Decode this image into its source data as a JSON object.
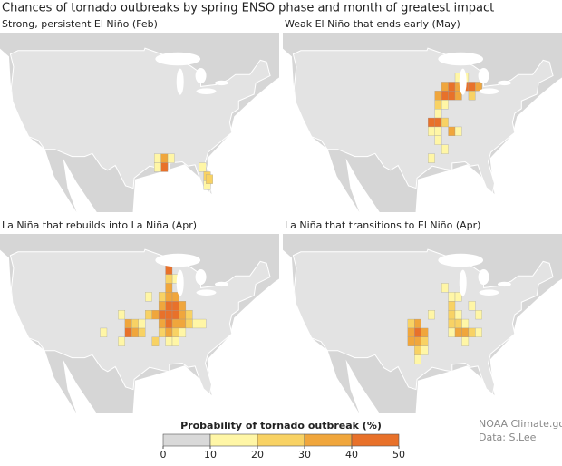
{
  "header": {
    "title": "Chances of tornado outbreaks by spring ENSO phase and month of greatest impact"
  },
  "panels": [
    {
      "title": "Strong, persistent El Niño (Feb)",
      "cells": [
        [
          -92,
          31,
          15
        ],
        [
          -90.5,
          31,
          35
        ],
        [
          -89,
          31,
          12
        ],
        [
          -90.5,
          29.5,
          45
        ],
        [
          -92,
          29.5,
          15
        ],
        [
          -82,
          29.5,
          12
        ],
        [
          -81,
          28,
          25
        ],
        [
          -81,
          26.5,
          15
        ],
        [
          -80.5,
          27.5,
          20
        ]
      ]
    },
    {
      "title": "Weak El Niño that ends early (May)",
      "cells": [
        [
          -91,
          43,
          35
        ],
        [
          -89.5,
          43,
          45
        ],
        [
          -88,
          43,
          30
        ],
        [
          -86.5,
          43,
          40
        ],
        [
          -85,
          43,
          45
        ],
        [
          -83.5,
          43,
          30
        ],
        [
          -92.5,
          41.5,
          30
        ],
        [
          -91,
          41.5,
          45
        ],
        [
          -89.5,
          41.5,
          45
        ],
        [
          -88,
          41.5,
          30
        ],
        [
          -85,
          41.5,
          20
        ],
        [
          -92.5,
          40,
          25
        ],
        [
          -91,
          40,
          15
        ],
        [
          -92.5,
          38.5,
          15
        ],
        [
          -94,
          37,
          40
        ],
        [
          -92.5,
          37,
          45
        ],
        [
          -91,
          37,
          25
        ],
        [
          -89.5,
          35.5,
          35
        ],
        [
          -88,
          35.5,
          15
        ],
        [
          -94,
          35.5,
          15
        ],
        [
          -92.5,
          35.5,
          15
        ],
        [
          -92.5,
          34,
          15
        ],
        [
          -91,
          32.5,
          12
        ],
        [
          -94,
          31,
          12
        ],
        [
          -86.5,
          44.5,
          15
        ],
        [
          -88,
          44.5,
          15
        ]
      ]
    },
    {
      "title": "La Niña that rebuilds into La Niña (Apr)",
      "cells": [
        [
          -100,
          38.5,
          15
        ],
        [
          -98.5,
          37,
          35
        ],
        [
          -97,
          37,
          20
        ],
        [
          -98.5,
          35.5,
          45
        ],
        [
          -97,
          35.5,
          30
        ],
        [
          -95.5,
          35.5,
          25
        ],
        [
          -95.5,
          37,
          15
        ],
        [
          -94,
          38.5,
          25
        ],
        [
          -92.5,
          38.5,
          30
        ],
        [
          -91,
          38.5,
          45
        ],
        [
          -89.5,
          38.5,
          45
        ],
        [
          -88,
          38.5,
          45
        ],
        [
          -86.5,
          38.5,
          35
        ],
        [
          -85,
          38.5,
          25
        ],
        [
          -89.5,
          40,
          45
        ],
        [
          -88,
          40,
          45
        ],
        [
          -86.5,
          40,
          35
        ],
        [
          -91,
          40,
          30
        ],
        [
          -89.5,
          41.5,
          35
        ],
        [
          -88,
          41.5,
          30
        ],
        [
          -91,
          41.5,
          20
        ],
        [
          -89.5,
          43,
          35
        ],
        [
          -88,
          44.5,
          15
        ],
        [
          -89.5,
          44.5,
          25
        ],
        [
          -89.5,
          46,
          45
        ],
        [
          -91,
          37,
          30
        ],
        [
          -89.5,
          37,
          40
        ],
        [
          -88,
          37,
          35
        ],
        [
          -86.5,
          37,
          30
        ],
        [
          -85,
          37,
          20
        ],
        [
          -91,
          35.5,
          25
        ],
        [
          -89.5,
          35.5,
          30
        ],
        [
          -88,
          35.5,
          25
        ],
        [
          -86.5,
          35.5,
          15
        ],
        [
          -92.5,
          34,
          20
        ],
        [
          -89.5,
          34,
          15
        ],
        [
          -88,
          34,
          15
        ],
        [
          -100,
          34,
          15
        ],
        [
          -104,
          35.5,
          12
        ],
        [
          -94,
          41.5,
          15
        ],
        [
          -83.5,
          37,
          15
        ],
        [
          -82,
          37,
          12
        ]
      ]
    },
    {
      "title": "La Niña that transitions to El Niño (Apr)",
      "cells": [
        [
          -98.5,
          37,
          25
        ],
        [
          -97,
          37,
          30
        ],
        [
          -98.5,
          35.5,
          30
        ],
        [
          -97,
          35.5,
          45
        ],
        [
          -95.5,
          35.5,
          30
        ],
        [
          -98.5,
          34,
          35
        ],
        [
          -97,
          34,
          30
        ],
        [
          -95.5,
          34,
          20
        ],
        [
          -97,
          32.5,
          25
        ],
        [
          -95.5,
          32.5,
          15
        ],
        [
          -97,
          31,
          15
        ],
        [
          -94,
          38.5,
          12
        ],
        [
          -89.5,
          41.5,
          15
        ],
        [
          -91,
          43,
          15
        ],
        [
          -88,
          41.5,
          15
        ],
        [
          -89.5,
          40,
          20
        ],
        [
          -89.5,
          38.5,
          25
        ],
        [
          -88,
          38.5,
          15
        ],
        [
          -89.5,
          37,
          20
        ],
        [
          -88,
          37,
          20
        ],
        [
          -86.5,
          37,
          15
        ],
        [
          -89.5,
          35.5,
          15
        ],
        [
          -88,
          35.5,
          30
        ],
        [
          -86.5,
          35.5,
          35
        ],
        [
          -85,
          35.5,
          25
        ],
        [
          -83.5,
          35.5,
          15
        ],
        [
          -86.5,
          34,
          15
        ],
        [
          -83.5,
          38.5,
          12
        ],
        [
          -85,
          40,
          12
        ]
      ]
    }
  ],
  "colorbar": {
    "title": "Probability of tornado outbreak (%)",
    "ticks": [
      0,
      10,
      20,
      30,
      40,
      50
    ],
    "colors": [
      "#d9d9d9",
      "#fff6a6",
      "#f8d264",
      "#f0a63c",
      "#e8712a",
      "#d7191c"
    ]
  },
  "credit": [
    "NOAA Climate.gov",
    "Data: S.Lee"
  ]
}
